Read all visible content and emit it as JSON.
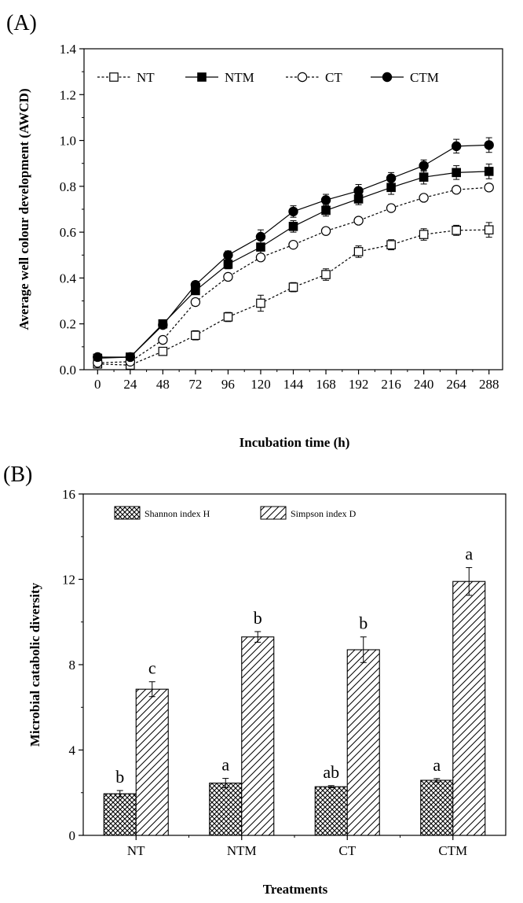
{
  "chart_data": [
    {
      "panel_label": "(A)",
      "type": "line",
      "title": "",
      "xlabel": "Incubation time (h)",
      "ylabel": "Average well colour development (AWCD)",
      "x": [
        0,
        24,
        48,
        72,
        96,
        120,
        144,
        168,
        192,
        216,
        240,
        264,
        288
      ],
      "xticks": [
        "0",
        "24",
        "48",
        "72",
        "96",
        "120",
        "144",
        "168",
        "192",
        "216",
        "240",
        "264",
        "288"
      ],
      "yticks": [
        "0.0",
        "0.2",
        "0.4",
        "0.6",
        "0.8",
        "1.0",
        "1.2",
        "1.4"
      ],
      "xlim": [
        -10,
        298
      ],
      "ylim": [
        0,
        1.4
      ],
      "grid": false,
      "legend_position": "top-left, horizontal",
      "series": [
        {
          "name": "NT",
          "marker": "open-square",
          "line": "dashed",
          "values": [
            0.025,
            0.02,
            0.08,
            0.15,
            0.23,
            0.29,
            0.36,
            0.415,
            0.515,
            0.545,
            0.59,
            0.608,
            0.61
          ],
          "errors": [
            0.01,
            0.01,
            0.012,
            0.02,
            0.02,
            0.035,
            0.02,
            0.025,
            0.025,
            0.022,
            0.025,
            0.022,
            0.032
          ]
        },
        {
          "name": "NTM",
          "marker": "filled-square",
          "line": "solid",
          "values": [
            0.05,
            0.055,
            0.2,
            0.345,
            0.46,
            0.535,
            0.625,
            0.695,
            0.745,
            0.795,
            0.84,
            0.86,
            0.865
          ],
          "errors": [
            0.01,
            0.01,
            0.012,
            0.015,
            0.02,
            0.03,
            0.025,
            0.025,
            0.025,
            0.03,
            0.03,
            0.03,
            0.032
          ]
        },
        {
          "name": "CT",
          "marker": "open-circle",
          "line": "dashed",
          "values": [
            0.03,
            0.035,
            0.13,
            0.295,
            0.405,
            0.49,
            0.545,
            0.605,
            0.65,
            0.705,
            0.75,
            0.785,
            0.795
          ],
          "errors": [
            0.008,
            0.008,
            0.012,
            0.012,
            0.012,
            0.015,
            0.012,
            0.012,
            0.012,
            0.012,
            0.012,
            0.012,
            0.015
          ]
        },
        {
          "name": "CTM",
          "marker": "filled-circle",
          "line": "solid",
          "values": [
            0.055,
            0.055,
            0.195,
            0.37,
            0.5,
            0.58,
            0.69,
            0.74,
            0.78,
            0.835,
            0.89,
            0.975,
            0.98
          ],
          "errors": [
            0.01,
            0.01,
            0.015,
            0.015,
            0.018,
            0.03,
            0.025,
            0.025,
            0.028,
            0.025,
            0.025,
            0.03,
            0.032
          ]
        }
      ]
    },
    {
      "panel_label": "(B)",
      "type": "bar",
      "title": "",
      "xlabel": "Treatments",
      "ylabel": "Microbial catabolic diversity",
      "categories": [
        "NT",
        "NTM",
        "CT",
        "CTM"
      ],
      "yticks": [
        "0",
        "4",
        "8",
        "12",
        "16"
      ],
      "ylim": [
        0,
        16
      ],
      "grid": false,
      "legend_position": "top, horizontal",
      "series": [
        {
          "name": "Shannon index H",
          "pattern": "crosshatch",
          "values": [
            1.95,
            2.45,
            2.28,
            2.58
          ],
          "errors": [
            0.15,
            0.22,
            0.05,
            0.08
          ],
          "letters": [
            "b",
            "a",
            "ab",
            "a"
          ]
        },
        {
          "name": "Simpson index D",
          "pattern": "diagonal-hatch",
          "values": [
            6.85,
            9.3,
            8.7,
            11.9
          ],
          "errors": [
            0.35,
            0.25,
            0.6,
            0.65
          ],
          "letters": [
            "c",
            "b",
            "b",
            "a"
          ]
        }
      ]
    }
  ]
}
